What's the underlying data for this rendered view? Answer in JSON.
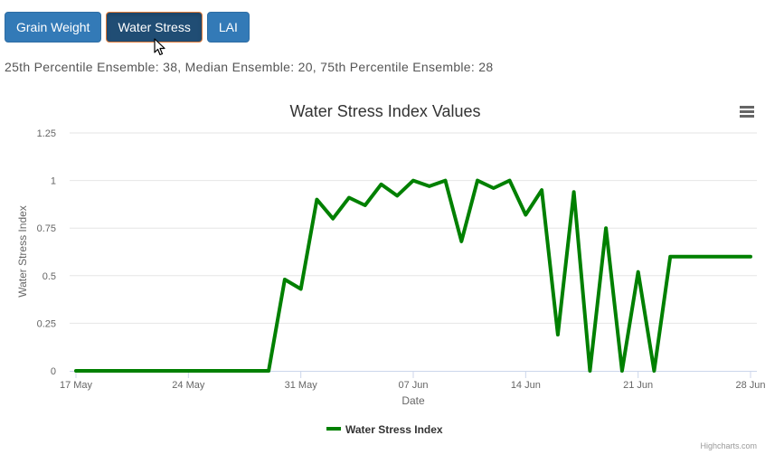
{
  "buttons": [
    {
      "label": "Grain Weight",
      "active": false
    },
    {
      "label": "Water Stress",
      "active": true
    },
    {
      "label": "LAI",
      "active": false
    }
  ],
  "summary": "25th Percentile Ensemble: 38, Median Ensemble: 20, 75th Percentile Ensemble: 28",
  "credit": "Highcharts.com",
  "menu_icon": "hamburger-menu-icon",
  "chart_data": {
    "type": "line",
    "title": "Water Stress Index Values",
    "xlabel": "Date",
    "ylabel": "Water Stress Index",
    "ylim": [
      0,
      1.25
    ],
    "yticks": [
      "0",
      "0.25",
      "0.5",
      "0.75",
      "1",
      "1.25"
    ],
    "ytick_values": [
      0,
      0.25,
      0.5,
      0.75,
      1,
      1.25
    ],
    "xticks": [
      "17 May",
      "24 May",
      "31 May",
      "07 Jun",
      "14 Jun",
      "21 Jun",
      "28 Jun"
    ],
    "x_range": [
      "17 May",
      "28 Jun"
    ],
    "grid": true,
    "legend": "bottom-center",
    "line_color": "#008000",
    "series": [
      {
        "name": "Water Stress Index",
        "x": [
          "17 May",
          "18 May",
          "19 May",
          "20 May",
          "21 May",
          "22 May",
          "23 May",
          "24 May",
          "25 May",
          "26 May",
          "27 May",
          "28 May",
          "29 May",
          "30 May",
          "31 May",
          "01 Jun",
          "02 Jun",
          "03 Jun",
          "04 Jun",
          "05 Jun",
          "06 Jun",
          "07 Jun",
          "08 Jun",
          "09 Jun",
          "10 Jun",
          "11 Jun",
          "12 Jun",
          "13 Jun",
          "14 Jun",
          "15 Jun",
          "16 Jun",
          "17 Jun",
          "18 Jun",
          "19 Jun",
          "20 Jun",
          "21 Jun",
          "22 Jun",
          "23 Jun",
          "24 Jun",
          "25 Jun",
          "26 Jun",
          "27 Jun",
          "28 Jun"
        ],
        "values": [
          0,
          0,
          0,
          0,
          0,
          0,
          0,
          0,
          0,
          0,
          0,
          0,
          0,
          0.48,
          0.43,
          0.9,
          0.8,
          0.91,
          0.87,
          0.98,
          0.92,
          1.0,
          0.97,
          1.0,
          0.68,
          1.0,
          0.96,
          1.0,
          0.82,
          0.95,
          0.19,
          0.94,
          0,
          0.75,
          0,
          0.52,
          0,
          0.6,
          0.6,
          0.6,
          0.6,
          0.6,
          0.6
        ]
      }
    ]
  }
}
